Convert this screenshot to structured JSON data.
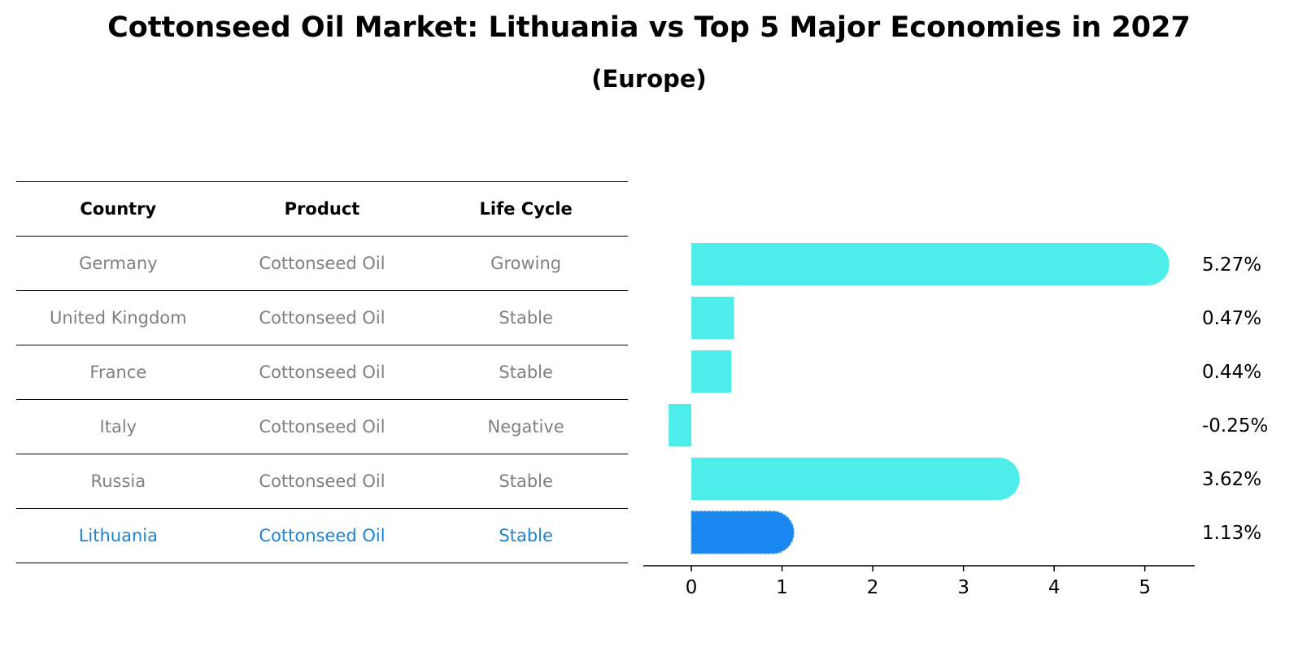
{
  "title": "Cottonseed Oil Market: Lithuania vs Top 5 Major Economies in 2027",
  "subtitle": "(Europe)",
  "table": {
    "headers": [
      "Country",
      "Product",
      "Life Cycle"
    ],
    "rows": [
      {
        "country": "Germany",
        "product": "Cottonseed Oil",
        "life_cycle": "Growing",
        "highlight": false
      },
      {
        "country": "United Kingdom",
        "product": "Cottonseed Oil",
        "life_cycle": "Stable",
        "highlight": false
      },
      {
        "country": "France",
        "product": "Cottonseed Oil",
        "life_cycle": "Stable",
        "highlight": false
      },
      {
        "country": "Italy",
        "product": "Cottonseed Oil",
        "life_cycle": "Negative",
        "highlight": false
      },
      {
        "country": "Russia",
        "product": "Cottonseed Oil",
        "life_cycle": "Stable",
        "highlight": false
      },
      {
        "country": "Lithuania",
        "product": "Cottonseed Oil",
        "life_cycle": "Stable",
        "highlight": true
      }
    ]
  },
  "colors": {
    "bar": "#4deeea",
    "highlight_bar": "#1a86f0",
    "highlight_text": "#1a83d6",
    "muted_text": "#808080"
  },
  "chart_data": {
    "type": "bar",
    "orientation": "horizontal",
    "categories": [
      "Germany",
      "United Kingdom",
      "France",
      "Italy",
      "Russia",
      "Lithuania"
    ],
    "values": [
      5.27,
      0.47,
      0.44,
      -0.25,
      3.62,
      1.13
    ],
    "value_labels": [
      "5.27%",
      "0.47%",
      "0.44%",
      "-0.25%",
      "3.62%",
      "1.13%"
    ],
    "highlight": "Lithuania",
    "xlim": [
      -0.53,
      5.55
    ],
    "xticks": [
      0,
      1,
      2,
      3,
      4,
      5
    ],
    "xtick_labels": [
      "0",
      "1",
      "2",
      "3",
      "4",
      "5"
    ],
    "grid": false,
    "xlabel": "",
    "ylabel": ""
  }
}
